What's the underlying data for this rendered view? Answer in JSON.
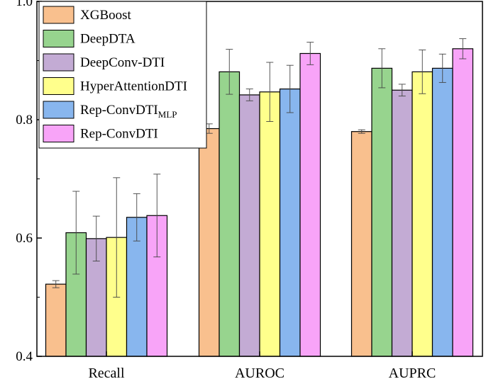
{
  "chart_data": {
    "type": "bar",
    "title": "",
    "xlabel": "",
    "ylabel": "",
    "ylim": [
      0.4,
      1.0
    ],
    "yticks": [
      "0.4",
      "0.6",
      "0.8",
      "1.0"
    ],
    "categories": [
      "Recall",
      "AUROC",
      "AUPRC"
    ],
    "legend_position": "top-left",
    "series": [
      {
        "name": "XGBoost",
        "name_main": "XGBoost",
        "name_sub": "",
        "color": "#F9C08E",
        "values": [
          0.522,
          0.785,
          0.78
        ],
        "errors": [
          0.006,
          0.008,
          0.003
        ]
      },
      {
        "name": "DeepDTA",
        "name_main": "DeepDTA",
        "name_sub": "",
        "color": "#97D48E",
        "values": [
          0.609,
          0.881,
          0.887
        ],
        "errors": [
          0.07,
          0.038,
          0.033
        ]
      },
      {
        "name": "DeepConv-DTI",
        "name_main": "DeepConv-DTI",
        "name_sub": "",
        "color": "#C3ABD4",
        "values": [
          0.599,
          0.842,
          0.85
        ],
        "errors": [
          0.038,
          0.01,
          0.01
        ]
      },
      {
        "name": "HyperAttentionDTI",
        "name_main": "HyperAttentionDTI",
        "name_sub": "",
        "color": "#FFFF8C",
        "values": [
          0.601,
          0.847,
          0.881
        ],
        "errors": [
          0.101,
          0.05,
          0.037
        ]
      },
      {
        "name": "Rep-ConvDTIMLP",
        "name_main": "Rep-ConvDTI",
        "name_sub": "MLP",
        "color": "#88B6EE",
        "values": [
          0.635,
          0.852,
          0.887
        ],
        "errors": [
          0.04,
          0.04,
          0.024
        ]
      },
      {
        "name": "Rep-ConvDTI",
        "name_main": "Rep-ConvDTI",
        "name_sub": "",
        "color": "#F8A4F8",
        "values": [
          0.638,
          0.912,
          0.92
        ],
        "errors": [
          0.07,
          0.019,
          0.017
        ]
      }
    ]
  }
}
